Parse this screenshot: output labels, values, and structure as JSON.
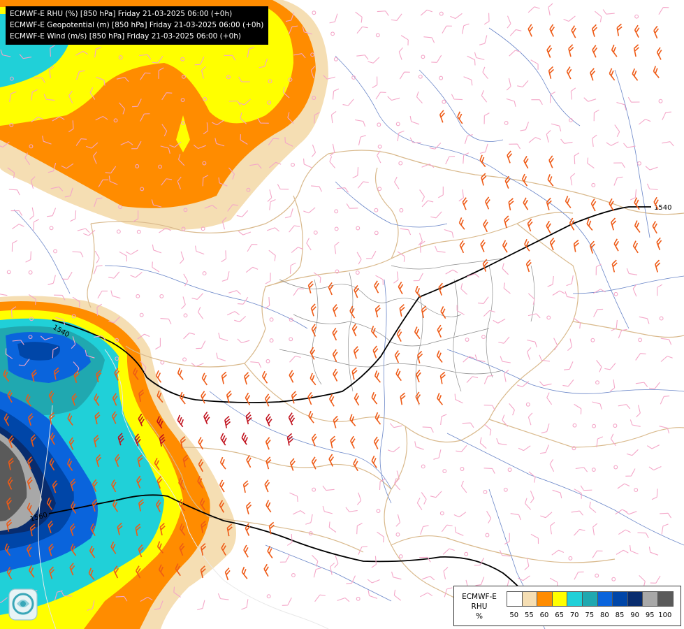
{
  "header": {
    "lines": [
      "ECMWF-E RHU (%) [850 hPa] Friday 21-03-2025 06:00 (+0h)",
      "ECMWF-E Geopotential (m) [850 hPa] Friday 21-03-2025 06:00 (+0h)",
      "ECMWF-E Wind (m/s) [850 hPa] Friday 21-03-2025 06:00 (+0h)"
    ]
  },
  "legend": {
    "title_line1": "ECMWF-E",
    "title_line2": "RHU",
    "unit": "%",
    "classes": [
      {
        "label": "50",
        "color": "#ffffff"
      },
      {
        "label": "55",
        "color": "#f5deb3"
      },
      {
        "label": "60",
        "color": "#ff8c00"
      },
      {
        "label": "65",
        "color": "#ffff00"
      },
      {
        "label": "70",
        "color": "#20d0d8"
      },
      {
        "label": "75",
        "color": "#20a8b0"
      },
      {
        "label": "80",
        "color": "#0a64dc"
      },
      {
        "label": "85",
        "color": "#0046a8"
      },
      {
        "label": "90",
        "color": "#082c6e"
      },
      {
        "label": "95",
        "color": "#a8a8a8"
      },
      {
        "label": "100",
        "color": "#5a5a5a"
      }
    ]
  },
  "contours": {
    "color": "#000000",
    "labels": [
      {
        "text": "1540",
        "place": "upper-right"
      },
      {
        "text": "1540",
        "place": "left"
      },
      {
        "text": "1560",
        "place": "lower-left"
      }
    ]
  },
  "wind": {
    "calm_color": "#f4a6c8",
    "moderate_color": "#ee5a16",
    "strong_color": "#c0101c"
  },
  "boundaries": {
    "country_color": "#d9b98c",
    "region_color": "#8c8c8c",
    "river_color": "#6a86c8"
  },
  "logo": {
    "name": "agency-logo"
  }
}
